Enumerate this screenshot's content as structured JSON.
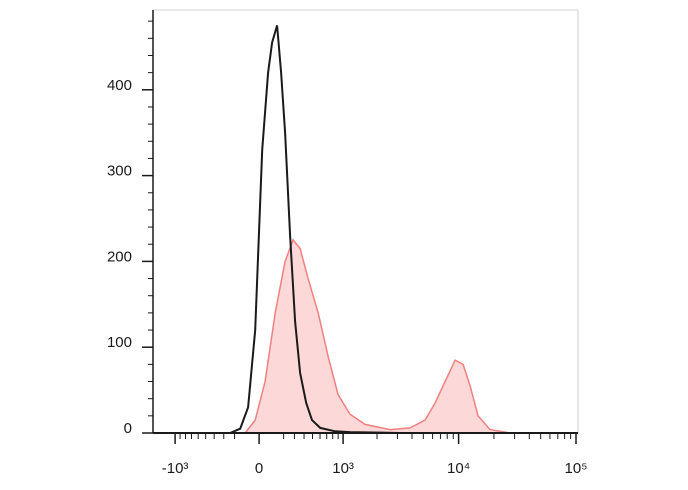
{
  "chart_data": {
    "type": "histogram-overlay",
    "xscale": "asinh",
    "xscale_width": 400,
    "xlim": [
      -1577,
      104000
    ],
    "xticks": [
      {
        "value": -1000,
        "label": "-10³"
      },
      0,
      {
        "value": 1000,
        "label": "10³"
      },
      {
        "value": 10000,
        "label": "10⁴"
      },
      {
        "value": 100000,
        "label": "10⁵"
      }
    ],
    "ylim": [
      0,
      493
    ],
    "yticks": [
      0,
      100,
      200,
      300,
      400
    ],
    "series": [
      {
        "color": "#f08080",
        "fill": "#fdd8d8",
        "x": [
          -111,
          -31,
          47,
          128,
          213,
          287,
          357,
          446,
          574,
          720,
          898,
          1154,
          1572,
          2596,
          3852,
          5180,
          6300,
          7668,
          9332,
          10916,
          12520,
          14640,
          18520,
          27440
        ],
        "values": [
          0,
          15,
          60,
          140,
          200,
          225,
          215,
          180,
          140,
          90,
          45,
          22,
          10,
          4,
          6,
          15,
          35,
          60,
          85,
          80,
          55,
          20,
          4,
          0
        ]
      },
      {
        "color": "#1a1a1a",
        "x": [
          -240,
          -152,
          -87,
          -31,
          24,
          71,
          103,
          144,
          178,
          213,
          258,
          306,
          357,
          424,
          494,
          602,
          843,
          1154,
          3160,
          22560
        ],
        "values": [
          0,
          5,
          30,
          120,
          330,
          420,
          455,
          475,
          420,
          350,
          230,
          130,
          70,
          35,
          15,
          6,
          2,
          1,
          0,
          0
        ]
      }
    ]
  }
}
